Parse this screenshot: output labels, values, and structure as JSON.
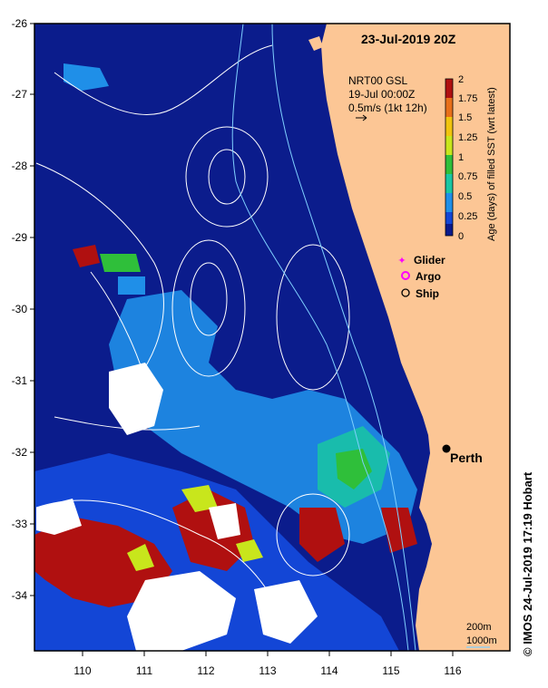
{
  "title": "23-Jul-2019 20Z",
  "credit": "© IMOS 24-Jul-2019 17:19 Hobart",
  "axes": {
    "lat_labels": [
      "-26",
      "-27",
      "-28",
      "-29",
      "-30",
      "-31",
      "-32",
      "-33",
      "-34"
    ],
    "lon_labels": [
      "110",
      "111",
      "112",
      "113",
      "114",
      "115",
      "116"
    ],
    "lat_range": [
      -34.8,
      -26
    ],
    "lon_range": [
      109.2,
      116.9
    ]
  },
  "current_legend": {
    "line1": "NRT00 GSL",
    "line2": "19-Jul 00:00Z",
    "line3": "0.5m/s (1kt 12h)"
  },
  "colorbar": {
    "label": "Age (days) of filled SST (wrt latest)",
    "ticks": [
      "2",
      "1.75",
      "1.5",
      "1.25",
      "1",
      "0.75",
      "0.5",
      "0.25",
      "0"
    ],
    "colors": [
      "#0a1a8c",
      "#1346d6",
      "#1f8fe8",
      "#19c7a3",
      "#2fbf3a",
      "#c8e61c",
      "#f1c40f",
      "#e8701a",
      "#b01010"
    ]
  },
  "markers": {
    "glider": "Glider",
    "argo": "Argo",
    "ship": "Ship",
    "glider_color": "#ff00ff",
    "argo_color": "#ff00ff"
  },
  "place": {
    "name": "Perth",
    "lon": 115.86,
    "lat": -31.95
  },
  "depth_legend": {
    "line1": "200m",
    "line2": "1000m",
    "color": "#7fd0ff"
  },
  "colors": {
    "land": "#fcc695",
    "ocean": "#0b1c8c",
    "contour": "#ffffff",
    "isobath": "#7fd0ff"
  }
}
